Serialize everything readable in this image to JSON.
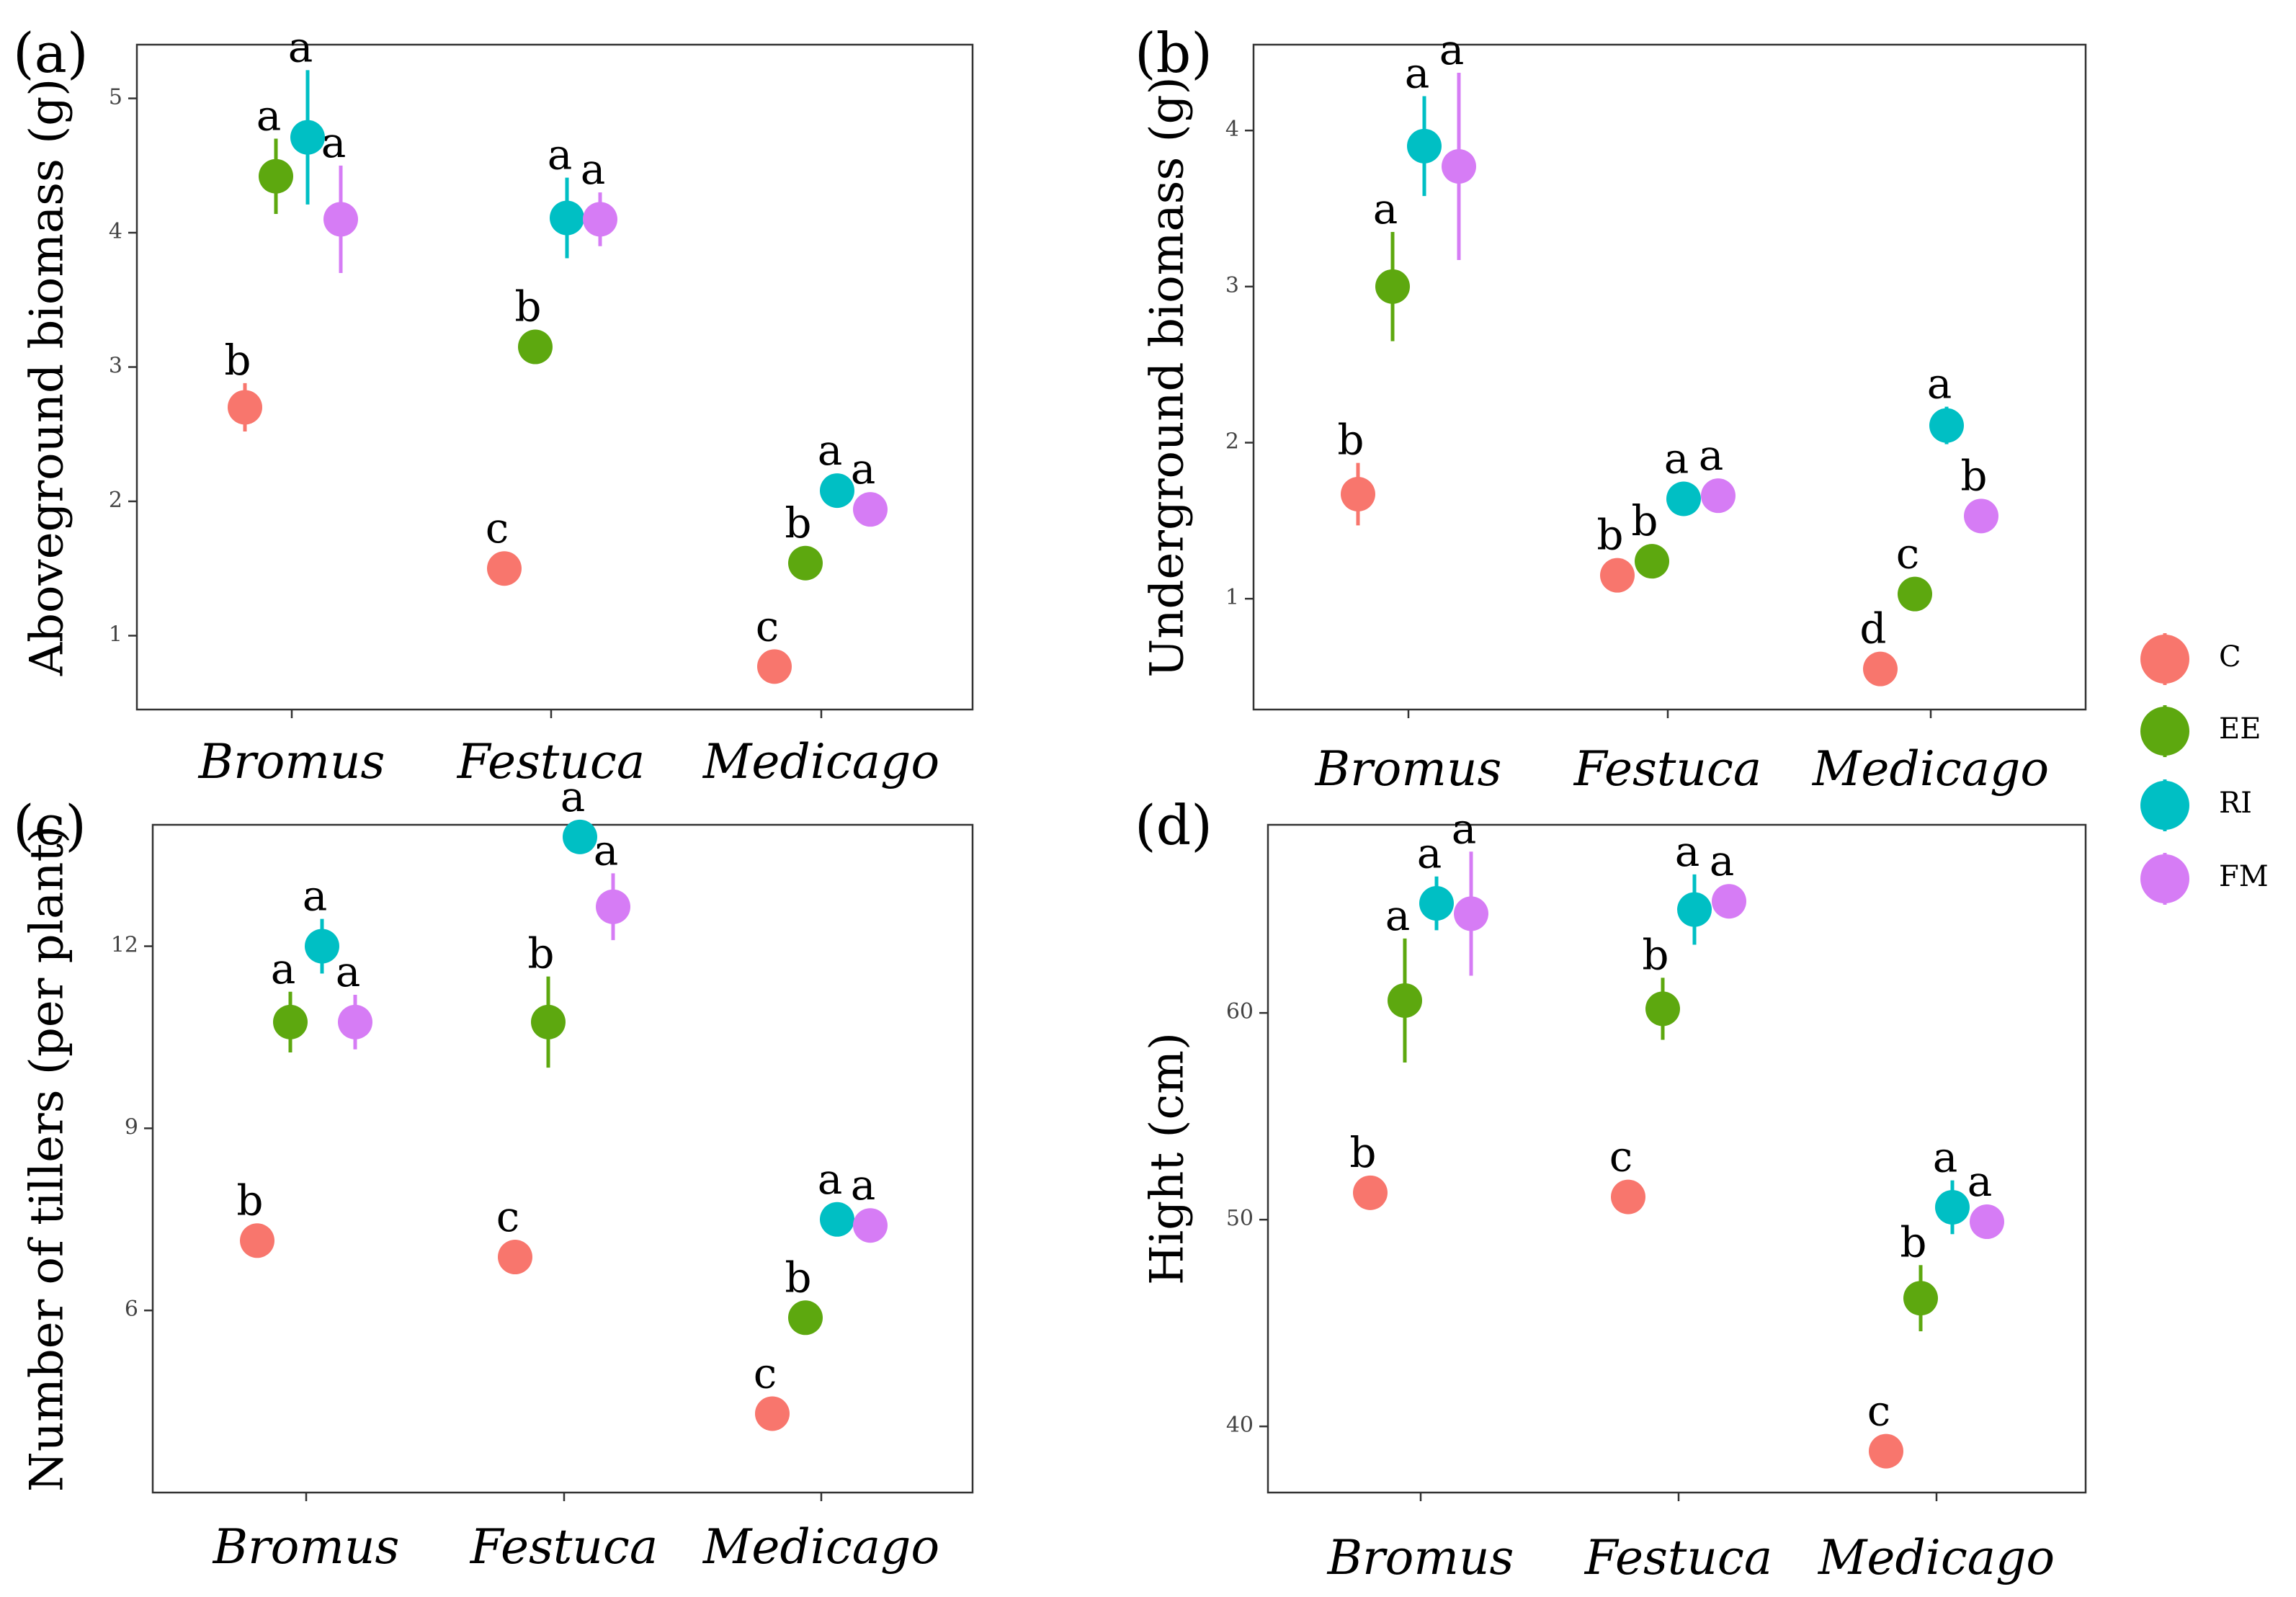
{
  "legend": {
    "items": [
      {
        "key": "C",
        "label": "C",
        "color": "#F8766D"
      },
      {
        "key": "EE",
        "label": "EE",
        "color": "#5DA80F"
      },
      {
        "key": "RI",
        "label": "RI",
        "color": "#00BFC4"
      },
      {
        "key": "FM",
        "label": "FM",
        "color": "#D67CF5"
      }
    ]
  },
  "chart_data": [
    {
      "type": "scatter",
      "panel": "(a)",
      "ylabel": "Aboveground biomass (g)",
      "xlabel": "",
      "categories": [
        "Bromus",
        "Festuca",
        "Medicago"
      ],
      "ylim": [
        0.45,
        5.4
      ],
      "yticks": [
        1,
        2,
        3,
        4,
        5
      ],
      "series": [
        {
          "name": "C",
          "values": [
            2.7,
            1.5,
            0.77
          ],
          "err": [
            0.18,
            0.05,
            0.05
          ],
          "labels": [
            "b",
            "c",
            "c"
          ]
        },
        {
          "name": "EE",
          "values": [
            4.42,
            3.15,
            1.54
          ],
          "err": [
            0.28,
            0.05,
            0.05
          ],
          "labels": [
            "a",
            "b",
            "b"
          ]
        },
        {
          "name": "RI",
          "values": [
            4.71,
            4.11,
            2.08
          ],
          "err": [
            0.5,
            0.3,
            0.05
          ],
          "labels": [
            "a",
            "a",
            "a"
          ]
        },
        {
          "name": "FM",
          "values": [
            4.1,
            4.1,
            1.94
          ],
          "err": [
            0.4,
            0.2,
            0.05
          ],
          "labels": [
            "a",
            "a",
            "a"
          ]
        }
      ]
    },
    {
      "type": "scatter",
      "panel": "(b)",
      "ylabel": "Underground biomass (g)",
      "xlabel": "",
      "categories": [
        "Bromus",
        "Festuca",
        "Medicago"
      ],
      "ylim": [
        0.29,
        4.55
      ],
      "yticks": [
        1,
        2,
        3,
        4
      ],
      "series": [
        {
          "name": "C",
          "values": [
            1.67,
            1.15,
            0.55
          ],
          "err": [
            0.2,
            0.05,
            0.05
          ],
          "labels": [
            "b",
            "b",
            "d"
          ]
        },
        {
          "name": "EE",
          "values": [
            3.0,
            1.24,
            1.03
          ],
          "err": [
            0.35,
            0.05,
            0.05
          ],
          "labels": [
            "a",
            "b",
            "c"
          ]
        },
        {
          "name": "RI",
          "values": [
            3.9,
            1.64,
            2.11
          ],
          "err": [
            0.32,
            0.05,
            0.12
          ],
          "labels": [
            "a",
            "a",
            "a"
          ]
        },
        {
          "name": "FM",
          "values": [
            3.77,
            1.66,
            1.53
          ],
          "err": [
            0.6,
            0.05,
            0.05
          ],
          "labels": [
            "a",
            "a",
            "b"
          ]
        }
      ]
    },
    {
      "type": "scatter",
      "panel": "(c)",
      "ylabel": "Number of tillers (per plant)",
      "xlabel": "",
      "categories": [
        "Bromus",
        "Festuca",
        "Medicago"
      ],
      "ylim": [
        3.0,
        14.0
      ],
      "yticks": [
        6,
        9,
        12
      ],
      "series": [
        {
          "name": "C",
          "values": [
            7.15,
            6.88,
            4.3
          ],
          "err": [
            0.1,
            0.1,
            0.1
          ],
          "labels": [
            "b",
            "c",
            "c"
          ]
        },
        {
          "name": "EE",
          "values": [
            10.75,
            10.75,
            5.88
          ],
          "err": [
            0.5,
            0.75,
            0.1
          ],
          "labels": [
            "a",
            "b",
            "b"
          ]
        },
        {
          "name": "RI",
          "values": [
            12.0,
            13.8,
            7.5
          ],
          "err": [
            0.45,
            0.25,
            0.1
          ],
          "labels": [
            "a",
            "a",
            "a"
          ]
        },
        {
          "name": "FM",
          "values": [
            10.75,
            12.65,
            7.4
          ],
          "err": [
            0.45,
            0.55,
            0.1
          ],
          "labels": [
            "a",
            "a",
            "a"
          ]
        }
      ]
    },
    {
      "type": "scatter",
      "panel": "(d)",
      "ylabel": "Hight (cm)",
      "xlabel": "",
      "categories": [
        "Bromus",
        "Festuca",
        "Medicago"
      ],
      "ylim": [
        36.8,
        69.1
      ],
      "yticks": [
        40,
        50,
        60
      ],
      "series": [
        {
          "name": "C",
          "values": [
            51.3,
            51.1,
            38.8
          ],
          "err": [
            0.3,
            0.3,
            0.3
          ],
          "labels": [
            "b",
            "c",
            "c"
          ]
        },
        {
          "name": "EE",
          "values": [
            60.6,
            60.2,
            46.2
          ],
          "err": [
            3.0,
            1.5,
            1.6
          ],
          "labels": [
            "a",
            "b",
            "b"
          ]
        },
        {
          "name": "RI",
          "values": [
            65.3,
            65.0,
            50.6
          ],
          "err": [
            1.3,
            1.7,
            1.3
          ],
          "labels": [
            "a",
            "a",
            "a"
          ]
        },
        {
          "name": "FM",
          "values": [
            64.8,
            65.4,
            49.9
          ],
          "err": [
            3.0,
            0.3,
            0.3
          ],
          "labels": [
            "a",
            "a",
            "a"
          ]
        }
      ]
    }
  ]
}
